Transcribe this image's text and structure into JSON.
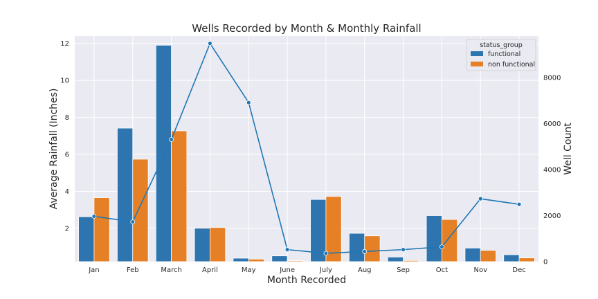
{
  "chart_data": {
    "type": "bar",
    "title": "Wells Recorded by Month & Monthly Rainfall",
    "xlabel": "Month Recorded",
    "ylabel_left": "Average Rainfall (Inches)",
    "ylabel_right": "Well Count",
    "categories": [
      "Jan",
      "Feb",
      "March",
      "April",
      "May",
      "June",
      "July",
      "Aug",
      "Sep",
      "Oct",
      "Nov",
      "Dec"
    ],
    "left_axis": {
      "ylim": [
        0.2,
        12.4
      ],
      "ticks": [
        2,
        4,
        6,
        8,
        10,
        12
      ],
      "tick_labels": [
        "2",
        "4",
        "6",
        "8",
        "10",
        "12"
      ]
    },
    "right_axis": {
      "ylim": [
        0,
        9800
      ],
      "ticks": [
        0,
        2000,
        4000,
        6000,
        8000
      ],
      "tick_labels": [
        "0",
        "2000",
        "4000",
        "6000",
        "8000"
      ]
    },
    "rainfall_line": {
      "axis": "left",
      "color": "#1f77b4",
      "values": [
        2.65,
        2.35,
        6.8,
        12.0,
        8.8,
        0.85,
        0.65,
        0.75,
        0.85,
        1.0,
        3.6,
        3.3
      ]
    },
    "series": [
      {
        "name": "functional",
        "axis": "right",
        "color": "#2e75b0",
        "values": [
          1950,
          5800,
          9400,
          1450,
          150,
          250,
          2700,
          1230,
          200,
          2000,
          590,
          300
        ]
      },
      {
        "name": "non functional",
        "axis": "right",
        "color": "#e58026",
        "values": [
          2780,
          4450,
          5680,
          1480,
          110,
          40,
          2830,
          1120,
          50,
          1830,
          490,
          160
        ]
      }
    ],
    "legend": {
      "title": "status_group",
      "position": "top-right"
    },
    "grid": true,
    "background": "#eaeaf2"
  }
}
